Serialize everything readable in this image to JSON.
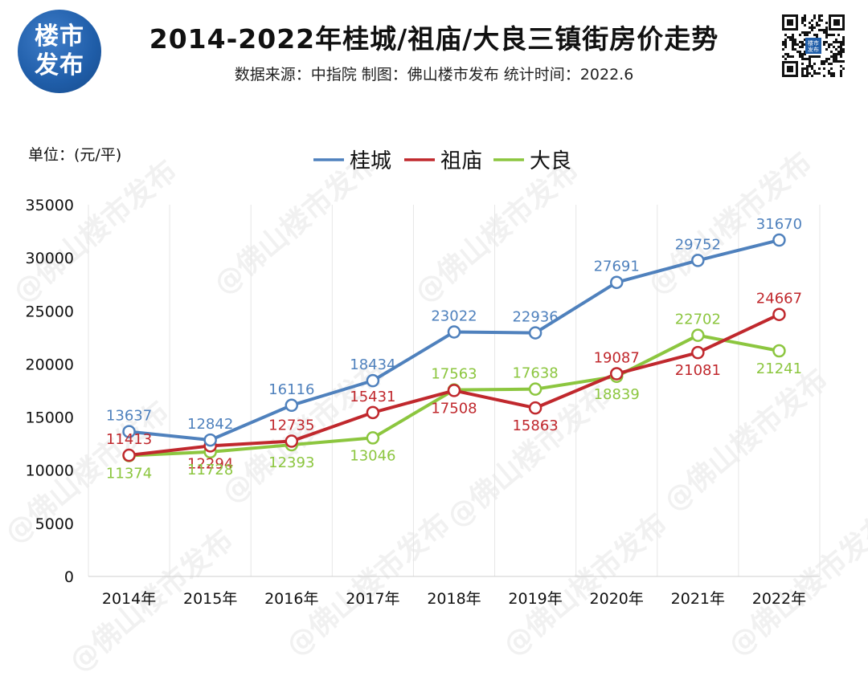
{
  "logo": {
    "line1": "楼市",
    "line2": "发布"
  },
  "header": {
    "title": "2014-2022年桂城/祖庙/大良三镇街房价走势",
    "subtitle": "数据来源：中指院  制图：佛山楼市发布  统计时间：2022.6"
  },
  "qr": {
    "label": "楼市发布"
  },
  "watermark": {
    "text": "@佛山楼市发布"
  },
  "colors": {
    "guicheng": "#4f81bd",
    "zumiao": "#c0282d",
    "daliang": "#8cc63f",
    "logo": "#1f5da8"
  },
  "chart_data": {
    "type": "line",
    "title": "2014-2022年桂城/祖庙/大良三镇街房价走势",
    "ylabel": "单位：(元/平)",
    "xlabel": "",
    "categories": [
      "2014年",
      "2015年",
      "2016年",
      "2017年",
      "2018年",
      "2019年",
      "2020年",
      "2021年",
      "2022年"
    ],
    "ylim": [
      0,
      35000
    ],
    "yticks": [
      0,
      5000,
      10000,
      15000,
      20000,
      25000,
      30000,
      35000
    ],
    "legend_position": "top-center",
    "grid": "vertical",
    "series": [
      {
        "name": "桂城",
        "color": "#4f81bd",
        "values": [
          13637,
          12842,
          16116,
          18434,
          23022,
          22936,
          27691,
          29752,
          31670
        ]
      },
      {
        "name": "祖庙",
        "color": "#c0282d",
        "values": [
          11413,
          12294,
          12735,
          15431,
          17508,
          15863,
          19087,
          21081,
          24667
        ]
      },
      {
        "name": "大良",
        "color": "#8cc63f",
        "values": [
          11374,
          11728,
          12393,
          13046,
          17563,
          17638,
          18839,
          22702,
          21241
        ]
      }
    ]
  }
}
